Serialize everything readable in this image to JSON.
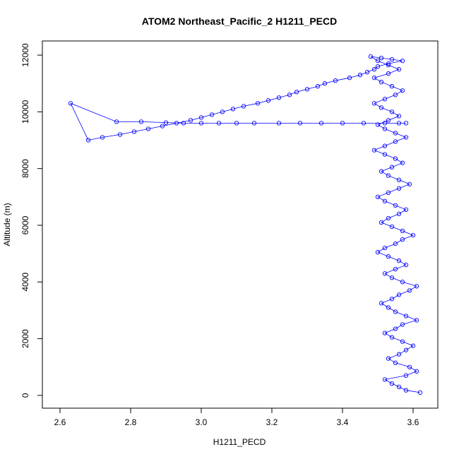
{
  "chart_data": {
    "type": "scatter",
    "title": "ATOM2 Northeast_Pacific_2 H1211_PECD",
    "xlabel": "H1211_PECD",
    "ylabel": "Altitude (m)",
    "xlim": [
      2.55,
      3.67
    ],
    "ylim": [
      -450,
      12500
    ],
    "xticks": [
      2.6,
      2.8,
      3.0,
      3.2,
      3.4,
      3.6
    ],
    "xtick_labels": [
      "2.6",
      "2.8",
      "3.0",
      "3.2",
      "3.4",
      "3.6"
    ],
    "yticks": [
      0,
      2000,
      4000,
      6000,
      8000,
      10000,
      12000
    ],
    "ytick_labels": [
      "0",
      "2000",
      "4000",
      "6000",
      "8000",
      "10000",
      "12000"
    ],
    "grid": false,
    "legend": "none",
    "marker": "open-circle",
    "connected": true,
    "color": "#0000ff",
    "series": [
      {
        "x": [
          3.62,
          3.58,
          3.56,
          3.54,
          3.52,
          3.58,
          3.61,
          3.59,
          3.55,
          3.53,
          3.56,
          3.58,
          3.6,
          3.57,
          3.54,
          3.52,
          3.55,
          3.57,
          3.61,
          3.58,
          3.55,
          3.53,
          3.51,
          3.54,
          3.56,
          3.59,
          3.61,
          3.57,
          3.54,
          3.52,
          3.55,
          3.58,
          3.56,
          3.53,
          3.5,
          3.52,
          3.55,
          3.57,
          3.6,
          3.57,
          3.54,
          3.51,
          3.53,
          3.56,
          3.58,
          3.55,
          3.52,
          3.5,
          3.53,
          3.56,
          3.59,
          3.56,
          3.53,
          3.51,
          3.54,
          3.57,
          3.55,
          3.52,
          3.49,
          3.52,
          3.55,
          3.58,
          3.55,
          3.52,
          3.5,
          3.53,
          3.56,
          3.54,
          3.51,
          3.49,
          3.52,
          3.55,
          3.57,
          3.54,
          3.51,
          3.49,
          3.53,
          3.56,
          3.53,
          3.5,
          3.48,
          3.51,
          3.54,
          3.57,
          3.53,
          3.5,
          3.49,
          3.47,
          3.45,
          3.42,
          3.38,
          3.35,
          3.33,
          3.3,
          3.27,
          3.25,
          3.22,
          3.19,
          3.16,
          3.12,
          3.09,
          3.06,
          3.03,
          3.0,
          2.97,
          2.93,
          2.89,
          2.85,
          2.81,
          2.77,
          2.72,
          2.68,
          2.63,
          2.76,
          2.83,
          2.9,
          2.95,
          3.0,
          3.05,
          3.1,
          3.15,
          3.22,
          3.28,
          3.34,
          3.4,
          3.46,
          3.52,
          3.56,
          3.58
        ],
        "y": [
          100,
          180,
          300,
          420,
          560,
          700,
          850,
          1000,
          1150,
          1300,
          1450,
          1600,
          1750,
          1900,
          2050,
          2200,
          2350,
          2500,
          2650,
          2800,
          2950,
          3100,
          3250,
          3400,
          3550,
          3700,
          3850,
          4000,
          4150,
          4300,
          4450,
          4600,
          4750,
          4900,
          5050,
          5200,
          5350,
          5500,
          5650,
          5800,
          5950,
          6100,
          6250,
          6400,
          6550,
          6700,
          6850,
          7000,
          7150,
          7300,
          7450,
          7600,
          7750,
          7900,
          8050,
          8200,
          8350,
          8500,
          8650,
          8800,
          8950,
          9100,
          9250,
          9400,
          9550,
          9700,
          9850,
          10000,
          10150,
          10300,
          10450,
          10600,
          10750,
          10900,
          11050,
          11200,
          11350,
          11500,
          11650,
          11800,
          11950,
          11900,
          11850,
          11800,
          11700,
          11600,
          11500,
          11400,
          11300,
          11200,
          11100,
          11000,
          10900,
          10800,
          10700,
          10600,
          10500,
          10400,
          10300,
          10200,
          10100,
          10000,
          9900,
          9800,
          9700,
          9600,
          9500,
          9400,
          9300,
          9200,
          9100,
          9000,
          10300,
          9650,
          9650,
          9620,
          9600,
          9600,
          9600,
          9600,
          9600,
          9600,
          9600,
          9600,
          9600,
          9600,
          9600,
          9600,
          9600
        ]
      }
    ]
  }
}
